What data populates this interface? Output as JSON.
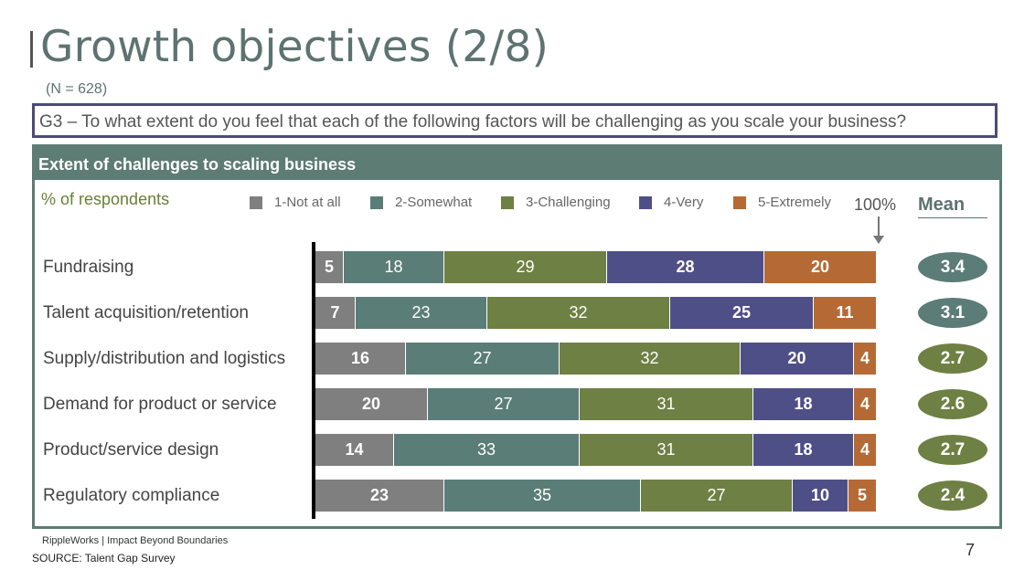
{
  "title": "Growth objectives (2/8)",
  "subtitle": "(N = 628)",
  "question": "G3 – To what extent do you feel that each of the following factors will be challenging as you scale your business?",
  "panel_header": "Extent of challenges to scaling business",
  "y_caption": "% of respondents",
  "pct100_label": "100%",
  "mean_label": "Mean",
  "footer_brand": "RippleWorks | Impact Beyond Boundaries",
  "source": "SOURCE: Talent Gap Survey",
  "page_number": "7",
  "colors": {
    "not_at_all": "#7f7f7f",
    "somewhat": "#5a7d77",
    "challenging": "#6e8043",
    "very": "#4f4f88",
    "extremely": "#b56a35",
    "mean_high": "#5b7c77",
    "mean_low": "#6e8043"
  },
  "chart_data": {
    "type": "bar",
    "orientation": "horizontal",
    "stacked": true,
    "title": "Extent of challenges to scaling business",
    "xlabel": "% of respondents",
    "ylabel": "",
    "xlim": [
      0,
      100
    ],
    "categories": [
      "Fundraising",
      "Talent acquisition/retention",
      "Supply/distribution and logistics",
      "Demand for product or service",
      "Product/service design",
      "Regulatory compliance"
    ],
    "series": [
      {
        "name": "1-Not at all",
        "color": "#7f7f7f",
        "values": [
          5,
          7,
          16,
          20,
          14,
          23
        ]
      },
      {
        "name": "2-Somewhat",
        "color": "#5a7d77",
        "values": [
          18,
          23,
          27,
          27,
          33,
          35
        ]
      },
      {
        "name": "3-Challenging",
        "color": "#6e8043",
        "values": [
          29,
          32,
          32,
          31,
          31,
          27
        ]
      },
      {
        "name": "4-Very",
        "color": "#4f4f88",
        "values": [
          28,
          25,
          20,
          18,
          18,
          10
        ]
      },
      {
        "name": "5-Extremely",
        "color": "#b56a35",
        "values": [
          20,
          11,
          4,
          4,
          4,
          5
        ]
      }
    ],
    "means": [
      "3.4",
      "3.1",
      "2.7",
      "2.6",
      "2.7",
      "2.4"
    ],
    "mean_colors": [
      "#5b7c77",
      "#5b7c77",
      "#6e8043",
      "#6e8043",
      "#6e8043",
      "#6e8043"
    ]
  }
}
